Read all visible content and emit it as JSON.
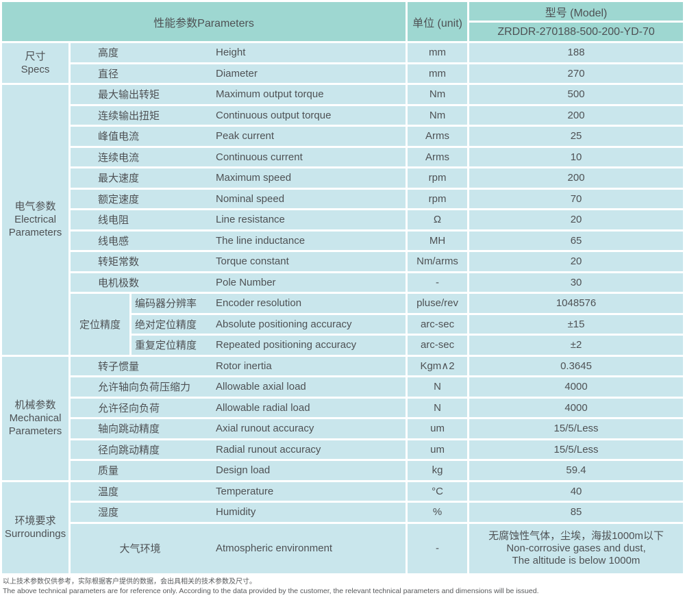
{
  "colors": {
    "header_bg": "#9ed7d1",
    "cell_bg": "#c9e6ec",
    "gridline": "#ffffff",
    "text": "#4e5154",
    "footnote_text": "#56585a"
  },
  "header": {
    "parameters_label": "性能参数Parameters",
    "unit_label": "单位 (unit)",
    "model_label": "型号 (Model)",
    "model_value": "ZRDDR-270188-500-200-YD-70"
  },
  "sections": [
    {
      "cn": "尺寸",
      "en": [
        "Specs"
      ],
      "rows": [
        {
          "cn": "高度",
          "en": "Height",
          "unit": "mm",
          "value": "188"
        },
        {
          "cn": "直径",
          "en": "Diameter",
          "unit": "mm",
          "value": "270"
        }
      ]
    },
    {
      "cn": "电气参数",
      "en": [
        "Electrical",
        "Parameters"
      ],
      "rows": [
        {
          "cn": "最大输出转矩",
          "en": "Maximum output torque",
          "unit": "Nm",
          "value": "500"
        },
        {
          "cn": "连续输出扭矩",
          "en": "Continuous output torque",
          "unit": "Nm",
          "value": "200"
        },
        {
          "cn": "峰值电流",
          "en": "Peak current",
          "unit": "Arms",
          "value": "25"
        },
        {
          "cn": "连续电流",
          "en": "Continuous current",
          "unit": "Arms",
          "value": "10"
        },
        {
          "cn": "最大速度",
          "en": "Maximum speed",
          "unit": "rpm",
          "value": "200"
        },
        {
          "cn": "额定速度",
          "en": "Nominal speed",
          "unit": "rpm",
          "value": "70"
        },
        {
          "cn": "线电阻",
          "en": "Line resistance",
          "unit": "Ω",
          "value": "20"
        },
        {
          "cn": "线电感",
          "en": "The line inductance",
          "unit": "MH",
          "value": "65"
        },
        {
          "cn": "转矩常数",
          "en": "Torque constant",
          "unit": "Nm/arms",
          "value": "20"
        },
        {
          "cn": "电机极数",
          "en": "Pole Number",
          "unit": "-",
          "value": "30"
        },
        {
          "group": "定位精度",
          "group_span": 3,
          "nested": true,
          "cn": "编码器分辨率",
          "en": "Encoder resolution",
          "unit": "pluse/rev",
          "value": "1048576"
        },
        {
          "nested": true,
          "cn": "绝对定位精度",
          "en": "Absolute positioning accuracy",
          "unit": "arc-sec",
          "value": "±15"
        },
        {
          "nested": true,
          "cn": "重复定位精度",
          "en": "Repeated positioning accuracy",
          "unit": "arc-sec",
          "value": "±2"
        }
      ]
    },
    {
      "cn": "机械参数",
      "en": [
        "Mechanical",
        "Parameters"
      ],
      "rows": [
        {
          "cn": "转子惯量",
          "en": "Rotor inertia",
          "unit": "Kgm∧2",
          "value": "0.3645"
        },
        {
          "cn": "允许轴向负荷压缩力",
          "en": "Allowable axial load",
          "unit": "N",
          "value": "4000"
        },
        {
          "cn": "允许径向负荷",
          "en": "Allowable radial load",
          "unit": "N",
          "value": "4000"
        },
        {
          "cn": "轴向跳动精度",
          "en": "Axial runout accuracy",
          "unit": "um",
          "value": "15/5/Less"
        },
        {
          "cn": "径向跳动精度",
          "en": "Radial runout accuracy",
          "unit": "um",
          "value": "15/5/Less"
        },
        {
          "cn": "质量",
          "en": "Design load",
          "unit": "kg",
          "value": "59.4"
        }
      ]
    },
    {
      "cn": "环境要求",
      "en": [
        "Surroundings"
      ],
      "rows": [
        {
          "cn": "温度",
          "en": "Temperature",
          "unit": "°C",
          "value": "40"
        },
        {
          "cn": "湿度",
          "en": "Humidity",
          "unit": "%",
          "value": "85"
        },
        {
          "cn": "大气环境",
          "en": "Atmospheric environment",
          "unit": "-",
          "tall": true,
          "cn_centered": true,
          "value": [
            "无腐蚀性气体，尘埃，海拔1000m以下",
            "Non-corrosive gases and dust,",
            "The altitude is below 1000m"
          ]
        }
      ]
    }
  ],
  "footnotes": [
    "以上技术参数仅供参考，实际根据客户提供的数据，会出具相关的技术参数及尺寸。",
    "The above technical parameters are for reference only. According to the data provided by the customer, the relevant technical parameters and dimensions will be issued."
  ]
}
